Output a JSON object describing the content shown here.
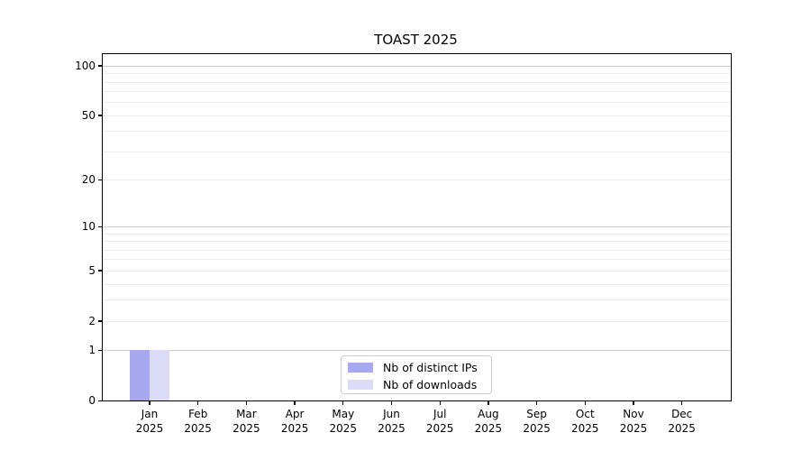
{
  "chart_data": {
    "type": "bar",
    "title": "TOAST 2025",
    "categories": [
      "Jan",
      "Feb",
      "Mar",
      "Apr",
      "May",
      "Jun",
      "Jul",
      "Aug",
      "Sep",
      "Oct",
      "Nov",
      "Dec"
    ],
    "category_year": "2025",
    "series": [
      {
        "name": "Nb of distinct IPs",
        "color": "#a8a8f0",
        "values": [
          1,
          0,
          0,
          0,
          0,
          0,
          0,
          0,
          0,
          0,
          0,
          0
        ]
      },
      {
        "name": "Nb of downloads",
        "color": "#dbdbf7",
        "values": [
          1,
          0,
          0,
          0,
          0,
          0,
          0,
          0,
          0,
          0,
          0,
          0
        ]
      }
    ],
    "xlabel": "",
    "ylabel": "",
    "y_axis": {
      "scale": "log10(1+value)",
      "tick_values": [
        0,
        1,
        2,
        5,
        10,
        20,
        50,
        100
      ],
      "major_gridlines": [
        1,
        10,
        100
      ],
      "minor_gridlines": [
        2,
        3,
        4,
        5,
        6,
        7,
        8,
        9,
        20,
        30,
        40,
        50,
        60,
        70,
        80,
        90
      ],
      "top_value": 117
    },
    "legend": {
      "position": "lower center",
      "entries": [
        "Nb of distinct IPs",
        "Nb of downloads"
      ]
    },
    "grid": "on",
    "colors": {
      "major_gridline": "#cccccc",
      "minor_gridline": "#ededed",
      "axis": "#000000",
      "background": "#ffffff"
    }
  }
}
